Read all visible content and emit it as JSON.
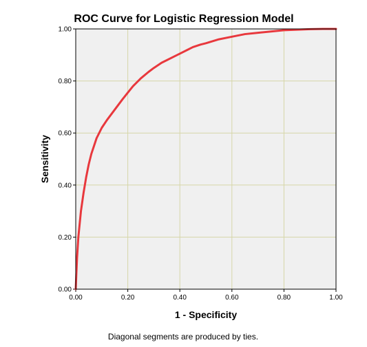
{
  "chart_data": {
    "type": "line",
    "title": "ROC Curve for Logistic Regression Model",
    "xlabel": "1 - Specificity",
    "ylabel": "Sensitivity",
    "footnote": "Diagonal segments are produced by ties.",
    "xlim": [
      0,
      1
    ],
    "ylim": [
      0,
      1
    ],
    "xticks": [
      "0.00",
      "0.20",
      "0.40",
      "0.60",
      "0.80",
      "1.00"
    ],
    "yticks": [
      "0.00",
      "0.20",
      "0.40",
      "0.60",
      "0.80",
      "1.00"
    ],
    "grid": true,
    "colors": {
      "plot_background": "#f0f0f0",
      "grid": "#d6d6a8",
      "curve": "#e8383d",
      "axis": "#000000"
    },
    "series": [
      {
        "x": [
          0,
          0.002,
          0.005,
          0.01,
          0.02,
          0.03,
          0.04,
          0.05,
          0.06,
          0.07,
          0.08,
          0.1,
          0.12,
          0.15,
          0.18,
          0.2,
          0.22,
          0.25,
          0.28,
          0.3,
          0.33,
          0.35,
          0.38,
          0.4,
          0.43,
          0.45,
          0.48,
          0.5,
          0.55,
          0.6,
          0.65,
          0.7,
          0.75,
          0.8,
          0.85,
          0.9,
          0.95,
          1
        ],
        "y": [
          0,
          0.05,
          0.12,
          0.2,
          0.3,
          0.37,
          0.43,
          0.48,
          0.52,
          0.55,
          0.58,
          0.62,
          0.65,
          0.69,
          0.73,
          0.755,
          0.78,
          0.81,
          0.835,
          0.85,
          0.87,
          0.88,
          0.895,
          0.905,
          0.92,
          0.93,
          0.94,
          0.945,
          0.96,
          0.97,
          0.98,
          0.985,
          0.99,
          0.995,
          0.997,
          0.999,
          1,
          1
        ]
      }
    ]
  }
}
